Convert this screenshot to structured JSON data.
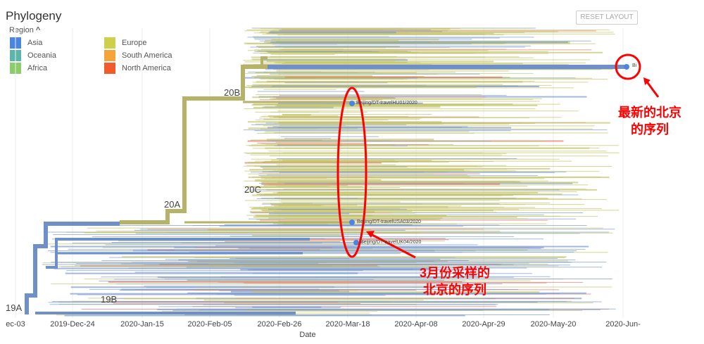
{
  "panel": {
    "title": "Phylogeny",
    "region_label": "Region",
    "reset_label": "RESET LAYOUT"
  },
  "legend": [
    {
      "label": "Asia",
      "color": "#4a86e0"
    },
    {
      "label": "Oceania",
      "color": "#5bb6a9"
    },
    {
      "label": "Africa",
      "color": "#8ccc6a"
    },
    {
      "label": "Europe",
      "color": "#cfcf4e"
    },
    {
      "label": "South America",
      "color": "#f6a33c"
    },
    {
      "label": "North America",
      "color": "#f15a2c"
    }
  ],
  "axis": {
    "label": "Date",
    "ticks": [
      "ec-03",
      "2019-Dec-24",
      "2020-Jan-15",
      "2020-Feb-05",
      "2020-Feb-26",
      "2020-Mar-18",
      "2020-Apr-08",
      "2020-Apr-29",
      "2020-May-20",
      "2020-Jun-"
    ]
  },
  "clades": [
    "19A",
    "19B",
    "20A",
    "20B",
    "20C"
  ],
  "tips": [
    "Beijing/DT-travelHU01/2020",
    "Beijing/DT-travelUSA03/2020",
    "Beijing/DT-travelUK04/2020",
    "Bi"
  ],
  "annotations": {
    "latest": "最新的北京\n的序列",
    "march_line1": "3月份采样的",
    "march_line2": "北京的序列",
    "latest_line1": "最新的北京",
    "latest_line2": "的序列"
  }
}
